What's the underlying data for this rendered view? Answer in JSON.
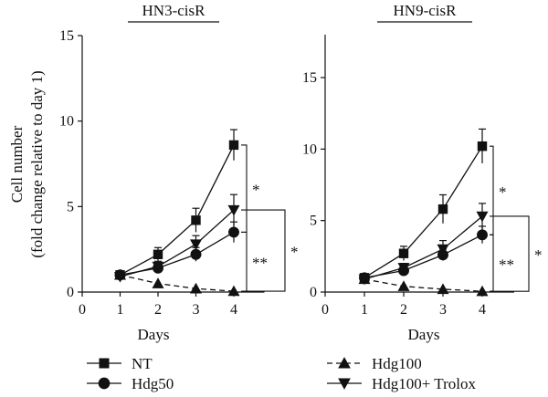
{
  "figure": {
    "ylabel_line1": "Cell number",
    "ylabel_line2": "(fold change relative to day 1)",
    "legend": [
      {
        "label": "NT",
        "marker": "square",
        "dash": false
      },
      {
        "label": "Hdg50",
        "marker": "circle",
        "dash": false
      },
      {
        "label": "Hdg100",
        "marker": "triangle-up",
        "dash": true
      },
      {
        "label": "Hdg100+ Trolox",
        "marker": "triangle-down",
        "dash": false
      }
    ]
  },
  "chart_data": [
    {
      "type": "line",
      "title": "HN3-cisR",
      "xlabel": "Days",
      "ylabel": "Cell number (fold change relative to day 1)",
      "xlim": [
        0,
        5
      ],
      "ylim": [
        0,
        15
      ],
      "x_ticks": [
        0,
        1,
        2,
        3,
        4
      ],
      "y_ticks": [
        0,
        5,
        10,
        15
      ],
      "x": [
        1,
        2,
        3,
        4
      ],
      "series": [
        {
          "name": "NT",
          "marker": "square",
          "dash": false,
          "values": [
            1.0,
            2.2,
            4.2,
            8.6
          ],
          "errors": [
            0,
            0.4,
            0.7,
            0.9
          ]
        },
        {
          "name": "Hdg50",
          "marker": "circle",
          "dash": false,
          "values": [
            1.0,
            1.4,
            2.2,
            3.5
          ],
          "errors": [
            0,
            0.3,
            0.4,
            0.6
          ]
        },
        {
          "name": "Hdg100",
          "marker": "triangle-up",
          "dash": true,
          "values": [
            1.0,
            0.5,
            0.2,
            0.05
          ],
          "errors": [
            0,
            0,
            0,
            0
          ]
        },
        {
          "name": "Hdg100+ Trolox",
          "marker": "triangle-down",
          "dash": false,
          "values": [
            0.9,
            1.5,
            2.8,
            4.8
          ],
          "errors": [
            0,
            0.3,
            0.5,
            0.9
          ]
        }
      ],
      "significance": [
        {
          "between": [
            "NT",
            "Hdg50"
          ],
          "label": "*"
        },
        {
          "between": [
            "Hdg50",
            "Hdg100"
          ],
          "label": "**"
        },
        {
          "between": [
            "Hdg100+ Trolox",
            "Hdg100"
          ],
          "label": "*"
        }
      ]
    },
    {
      "type": "line",
      "title": "HN9-cisR",
      "xlabel": "Days",
      "ylabel": "",
      "xlim": [
        0,
        5
      ],
      "ylim": [
        0,
        18
      ],
      "x_ticks": [
        0,
        1,
        2,
        3,
        4
      ],
      "y_ticks": [
        0,
        5,
        10,
        15
      ],
      "x": [
        1,
        2,
        3,
        4
      ],
      "series": [
        {
          "name": "NT",
          "marker": "square",
          "dash": false,
          "values": [
            1.0,
            2.7,
            5.8,
            10.2
          ],
          "errors": [
            0,
            0.5,
            1.0,
            1.2
          ]
        },
        {
          "name": "Hdg50",
          "marker": "circle",
          "dash": false,
          "values": [
            1.0,
            1.5,
            2.6,
            4.0
          ],
          "errors": [
            0,
            0.3,
            0.4,
            0.6
          ]
        },
        {
          "name": "Hdg100",
          "marker": "triangle-up",
          "dash": true,
          "values": [
            0.9,
            0.4,
            0.2,
            0.05
          ],
          "errors": [
            0,
            0,
            0,
            0
          ]
        },
        {
          "name": "Hdg100+ Trolox",
          "marker": "triangle-down",
          "dash": false,
          "values": [
            0.9,
            1.7,
            3.0,
            5.3
          ],
          "errors": [
            0,
            0.3,
            0.6,
            0.9
          ]
        }
      ],
      "significance": [
        {
          "between": [
            "NT",
            "Hdg50"
          ],
          "label": "*"
        },
        {
          "between": [
            "Hdg50",
            "Hdg100"
          ],
          "label": "**"
        },
        {
          "between": [
            "Hdg100+ Trolox",
            "Hdg100"
          ],
          "label": "*"
        }
      ]
    }
  ]
}
